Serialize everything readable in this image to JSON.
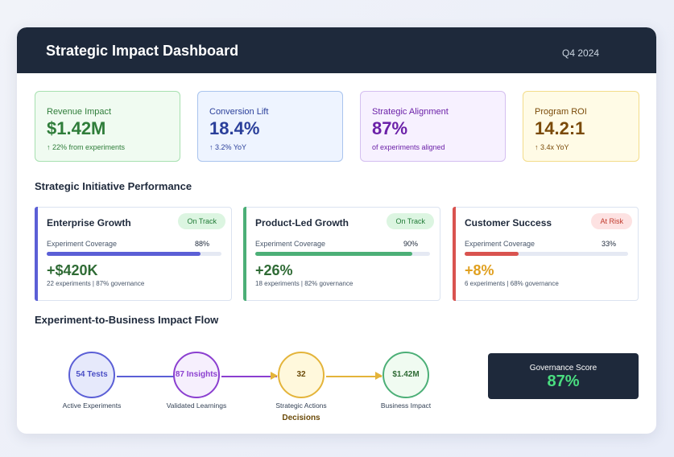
{
  "header": {
    "title": "Strategic Impact Dashboard",
    "period": "Q4 2024"
  },
  "kpis": [
    {
      "label": "Revenue Impact",
      "value": "$1.42M",
      "sub": "↑ 22% from experiments",
      "accent": "#2f7d3a",
      "bg": "#f0fbf1",
      "border": "#a7e0b0"
    },
    {
      "label": "Conversion Lift",
      "value": "18.4%",
      "sub": "↑ 3.2% YoY",
      "accent": "#2a3f9a",
      "bg": "#eef4ff",
      "border": "#a9c4ee"
    },
    {
      "label": "Strategic Alignment",
      "value": "87%",
      "sub": "of experiments aligned",
      "accent": "#6b21a8",
      "bg": "#f7f1ff",
      "border": "#d4bff0"
    },
    {
      "label": "Program ROI",
      "value": "14.2:1",
      "sub": "↑ 3.4x YoY",
      "accent": "#7a4a08",
      "bg": "#fffbe6",
      "border": "#f3dc8a"
    }
  ],
  "sections": {
    "initiatives_title": "Strategic Initiative Performance",
    "flow_title": "Experiment-to-Business Impact Flow"
  },
  "initiatives": [
    {
      "name": "Enterprise Growth",
      "status": "On Track",
      "coverage_label": "Experiment Coverage",
      "coverage_pct": "88%",
      "coverage": 0.88,
      "value": "+$420K",
      "sub": "22 experiments | 87% governance",
      "color": "#5b5fd6",
      "value_color": "#2f6b35",
      "badge_bg": "#dcf5e1",
      "badge_fg": "#1f7a35"
    },
    {
      "name": "Product-Led Growth",
      "status": "On Track",
      "coverage_label": "Experiment Coverage",
      "coverage_pct": "90%",
      "coverage": 0.9,
      "value": "+26%",
      "sub": "18 experiments | 82% governance",
      "color": "#4caf77",
      "value_color": "#2f6b35",
      "badge_bg": "#dcf5e1",
      "badge_fg": "#1f7a35"
    },
    {
      "name": "Customer Success",
      "status": "At Risk",
      "coverage_label": "Experiment Coverage",
      "coverage_pct": "33%",
      "coverage": 0.33,
      "value": "+8%",
      "sub": "6 experiments | 68% governance",
      "color": "#d9534f",
      "value_color": "#e0a020",
      "badge_bg": "#fde2e2",
      "badge_fg": "#c0392b"
    }
  ],
  "flow": [
    {
      "value": "54 Tests",
      "label": "Active Experiments",
      "color": "#5b5fd6",
      "bg": "#e6e9fb",
      "text": "#4b4fc6"
    },
    {
      "value": "87 Insights",
      "label": "Validated Learnings",
      "color": "#8b3fd0",
      "bg": "#f6effd",
      "text": "#8b3fd0"
    },
    {
      "value": "32 Decisions",
      "label": "Strategic Actions",
      "color": "#e4b43a",
      "bg": "#fff8dc",
      "text": "#6b4a08"
    },
    {
      "value": "$1.42M",
      "label": "Business Impact",
      "color": "#4caf77",
      "bg": "#f0fbf1",
      "text": "#2f6b35"
    }
  ],
  "governance": {
    "label": "Governance Score",
    "value": "87%"
  }
}
